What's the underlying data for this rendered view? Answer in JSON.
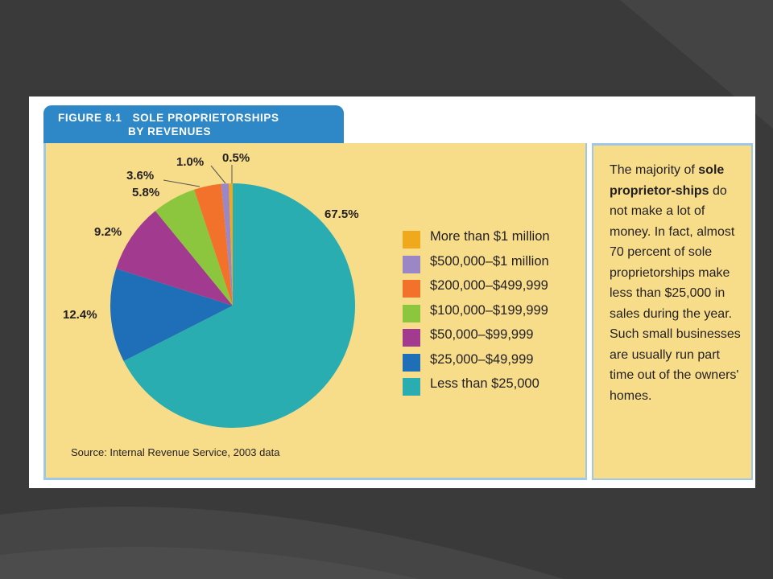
{
  "figure": {
    "title_line1": "FIGURE 8.1   SOLE PROPRIETORSHIPS",
    "title_line2": "                    BY REVENUES",
    "source": "Source: Internal Revenue Service, 2003 data"
  },
  "sidebar_text": {
    "part1": "The majority of",
    "bold": "sole proprietor-ships",
    "part2": "do not make a lot of money. In fact, almost 70 percent of sole proprietorships make less than $25,000 in sales during the year. Such small businesses are usually run part time out of the owners' homes."
  },
  "colors": {
    "background": "#3b3b3b",
    "panel": "#f7dd8a",
    "title_tab": "#2e88c7"
  },
  "chart_data": {
    "type": "pie",
    "title": "SOLE PROPRIETORSHIPS BY REVENUES",
    "legend_position": "right",
    "slices": [
      {
        "label": "More than $1 million",
        "value": 0.5,
        "pct_text": "0.5%",
        "color": "#f0a81c"
      },
      {
        "label": "$500,000–$1 million",
        "value": 1.0,
        "pct_text": "1.0%",
        "color": "#9b87c6"
      },
      {
        "label": "$200,000–$499,999",
        "value": 3.6,
        "pct_text": "3.6%",
        "color": "#f3722b"
      },
      {
        "label": "$100,000–$199,999",
        "value": 5.8,
        "pct_text": "5.8%",
        "color": "#8cc63f"
      },
      {
        "label": "$50,000–$99,999",
        "value": 9.2,
        "pct_text": "9.2%",
        "color": "#a23a8f"
      },
      {
        "label": "$25,000–$49,999",
        "value": 12.4,
        "pct_text": "12.4%",
        "color": "#1e6fb8"
      },
      {
        "label": "Less than $25,000",
        "value": 67.5,
        "pct_text": "67.5%",
        "color": "#2aadb1"
      }
    ]
  }
}
